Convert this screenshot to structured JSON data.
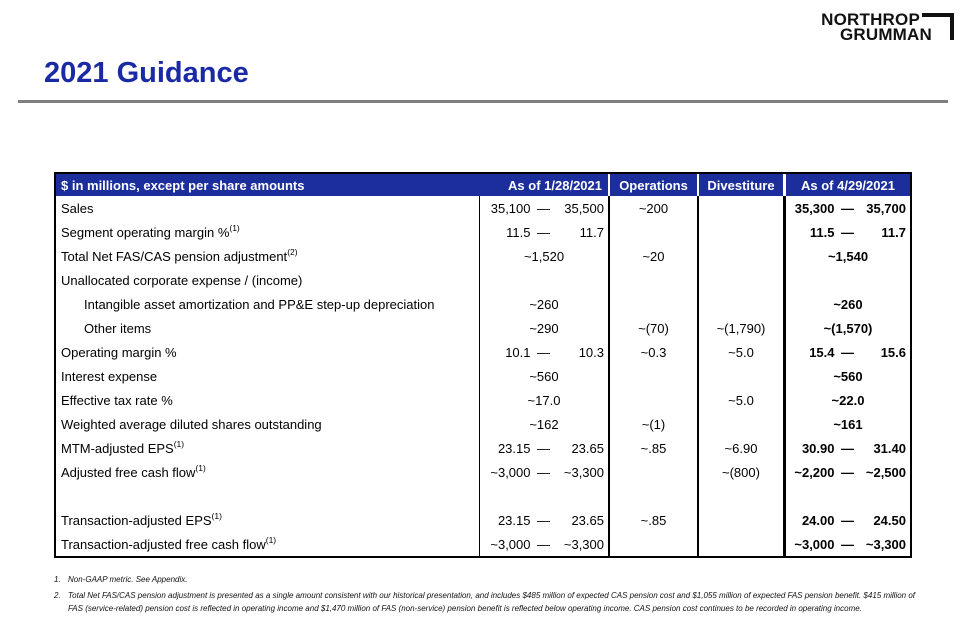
{
  "logo": {
    "line1": "NORTHROP",
    "line2": "GRUMMAN"
  },
  "title": "2021 Guidance",
  "colors": {
    "header_bg": "#1C2E9B",
    "title_color": "#1A2AA5",
    "rule_color": "#7F7F7F",
    "border_color": "#000000"
  },
  "table": {
    "range_separator": "—",
    "header": {
      "label_col": "$ in millions, except per share amounts",
      "asof1": "As of 1/28/2021",
      "operations": "Operations",
      "divestiture": "Divestiture",
      "asof2": "As of 4/29/2021"
    },
    "rows": [
      {
        "label": "Sales",
        "cells": [
          {
            "v1": "35,100",
            "v2": "35,500"
          },
          {
            "v": "~200"
          },
          null,
          {
            "v1": "35,300",
            "v2": "35,700"
          }
        ]
      },
      {
        "label": "Segment operating margin %",
        "sup": "(1)",
        "cells": [
          {
            "v1": "11.5",
            "v2": "11.7"
          },
          null,
          null,
          {
            "v1": "11.5",
            "v2": "11.7"
          }
        ]
      },
      {
        "label": "Total Net FAS/CAS pension adjustment",
        "sup": "(2)",
        "cells": [
          {
            "v": "~1,520"
          },
          {
            "v": "~20"
          },
          null,
          {
            "v": "~1,540"
          }
        ]
      },
      {
        "label": "Unallocated corporate expense / (income)",
        "cells": [
          null,
          null,
          null,
          null
        ]
      },
      {
        "label": "Intangible asset amortization and PP&E step-up depreciation",
        "indent": true,
        "cells": [
          {
            "v": "~260"
          },
          null,
          null,
          {
            "v": "~260"
          }
        ]
      },
      {
        "label": "Other items",
        "indent": true,
        "cells": [
          {
            "v": "~290"
          },
          {
            "v": "~(70)"
          },
          {
            "v": "~(1,790)"
          },
          {
            "v": "~(1,570)"
          }
        ]
      },
      {
        "label": "Operating margin %",
        "cells": [
          {
            "v1": "10.1",
            "v2": "10.3"
          },
          {
            "v": "~0.3"
          },
          {
            "v": "~5.0"
          },
          {
            "v1": "15.4",
            "v2": "15.6"
          }
        ]
      },
      {
        "label": "Interest expense",
        "cells": [
          {
            "v": "~560"
          },
          null,
          null,
          {
            "v": "~560"
          }
        ]
      },
      {
        "label": "Effective tax rate %",
        "cells": [
          {
            "v": "~17.0"
          },
          null,
          {
            "v": "~5.0"
          },
          {
            "v": "~22.0"
          }
        ]
      },
      {
        "label": "Weighted average diluted shares outstanding",
        "cells": [
          {
            "v": "~162"
          },
          {
            "v": "~(1)"
          },
          null,
          {
            "v": "~161"
          }
        ]
      },
      {
        "label": "MTM-adjusted EPS",
        "sup": "(1)",
        "cells": [
          {
            "v1": "23.15",
            "v2": "23.65"
          },
          {
            "v": "~.85"
          },
          {
            "v": "~6.90"
          },
          {
            "v1": "30.90",
            "v2": "31.40"
          }
        ]
      },
      {
        "label": "Adjusted free cash flow",
        "sup": "(1)",
        "cells": [
          {
            "v1": "~3,000",
            "v2": "~3,300"
          },
          null,
          {
            "v": "~(800)"
          },
          {
            "v1": "~2,200",
            "v2": "~2,500"
          }
        ]
      },
      {
        "label": "",
        "spacer": true,
        "cells": [
          null,
          null,
          null,
          null
        ]
      },
      {
        "label": "Transaction-adjusted EPS",
        "sup": "(1)",
        "cells": [
          {
            "v1": "23.15",
            "v2": "23.65"
          },
          {
            "v": "~.85"
          },
          null,
          {
            "v1": "24.00",
            "v2": "24.50"
          }
        ]
      },
      {
        "label": "Transaction-adjusted free cash flow",
        "sup": "(1)",
        "cells": [
          {
            "v1": "~3,000",
            "v2": "~3,300"
          },
          null,
          null,
          {
            "v1": "~3,000",
            "v2": "~3,300"
          }
        ]
      }
    ]
  },
  "footnotes": [
    {
      "num": "1.",
      "text": "Non-GAAP metric. See Appendix."
    },
    {
      "num": "2.",
      "text": "Total Net FAS/CAS pension adjustment is presented as a single amount consistent with our historical presentation, and includes $485 million of expected CAS pension cost and $1,055 million of expected FAS pension benefit. $415 million of FAS (service-related) pension cost is reflected in operating income and $1,470 million of FAS (non-service) pension benefit is reflected below operating income. CAS pension cost continues to be recorded in operating income."
    }
  ]
}
